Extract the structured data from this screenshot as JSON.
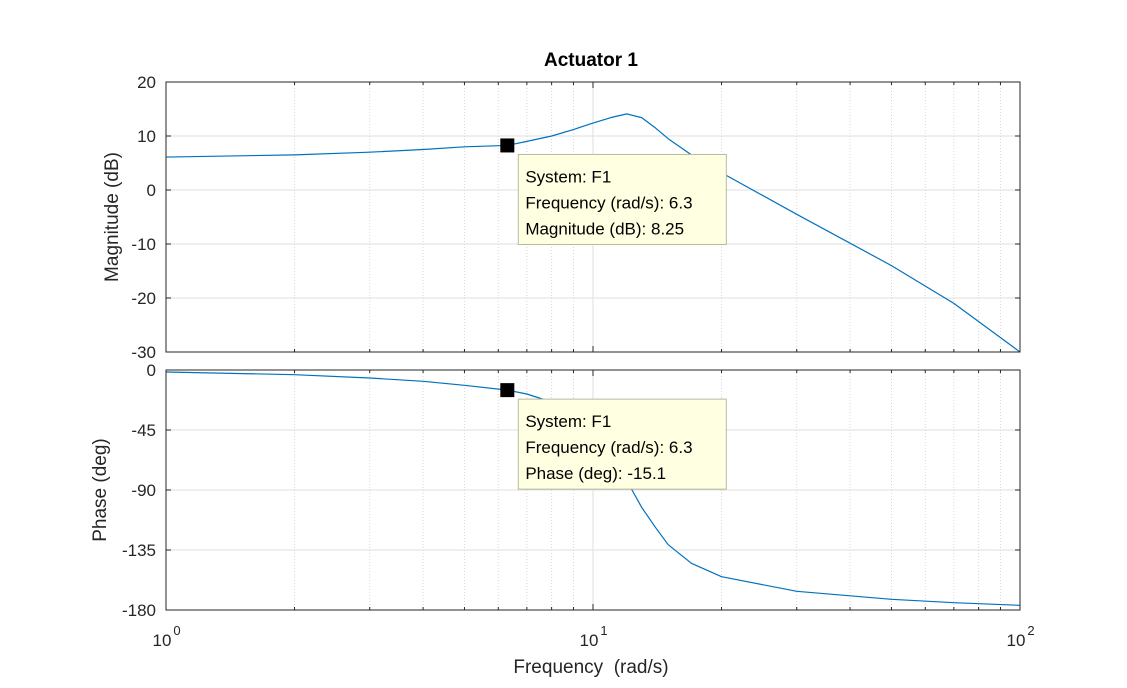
{
  "chart_data": {
    "type": "line",
    "title": "Actuator 1",
    "xlabel": "Frequency  (rad/s)",
    "xscale": "log",
    "xlim": [
      1,
      100
    ],
    "x_ticks": [
      1,
      10,
      100
    ],
    "x_tick_labels": [
      {
        "base": "10",
        "exp": "0"
      },
      {
        "base": "10",
        "exp": "1"
      },
      {
        "base": "10",
        "exp": "2"
      }
    ],
    "grid": true,
    "line_color": "#0072BD",
    "panels": [
      {
        "id": "magnitude",
        "ylabel": "Magnitude (dB)",
        "ylim": [
          -30,
          20
        ],
        "y_ticks": [
          20,
          10,
          0,
          -10,
          -20,
          -30
        ],
        "series": [
          {
            "x": [
              1,
              2,
              3,
              4,
              5,
              6.3,
              7,
              8,
              9,
              10,
              11,
              12,
              13,
              14,
              15,
              17,
              20,
              30,
              50,
              70,
              100
            ],
            "y": [
              6.1,
              6.5,
              7.0,
              7.5,
              8.0,
              8.25,
              9.0,
              10.0,
              11.2,
              12.4,
              13.4,
              14.1,
              13.4,
              11.5,
              9.5,
              6.5,
              3.2,
              -4.5,
              -14.0,
              -21.0,
              -30.0
            ]
          }
        ],
        "datatip": {
          "x": 6.3,
          "y": 8.25,
          "lines": [
            "System: F1",
            "Frequency (rad/s): 6.3",
            "Magnitude (dB): 8.25"
          ]
        }
      },
      {
        "id": "phase",
        "ylabel": "Phase (deg)",
        "ylim": [
          -180,
          0
        ],
        "y_ticks": [
          0,
          -45,
          -90,
          -135,
          -180
        ],
        "series": [
          {
            "x": [
              1,
              2,
              3,
              4,
              5,
              6.3,
              7,
              8,
              9,
              10,
              11,
              12,
              13,
              14,
              15,
              17,
              20,
              30,
              50,
              70,
              100
            ],
            "y": [
              -1.5,
              -3.5,
              -6,
              -8.5,
              -11.5,
              -15.1,
              -18,
              -24,
              -33,
              -45,
              -62,
              -83,
              -103,
              -118,
              -131,
              -145,
              -155,
              -166,
              -172,
              -174.5,
              -176.5
            ]
          }
        ],
        "datatip": {
          "x": 6.3,
          "y": -15.1,
          "lines": [
            "System: F1",
            "Frequency (rad/s): 6.3",
            "Phase (deg): -15.1"
          ]
        }
      }
    ]
  }
}
